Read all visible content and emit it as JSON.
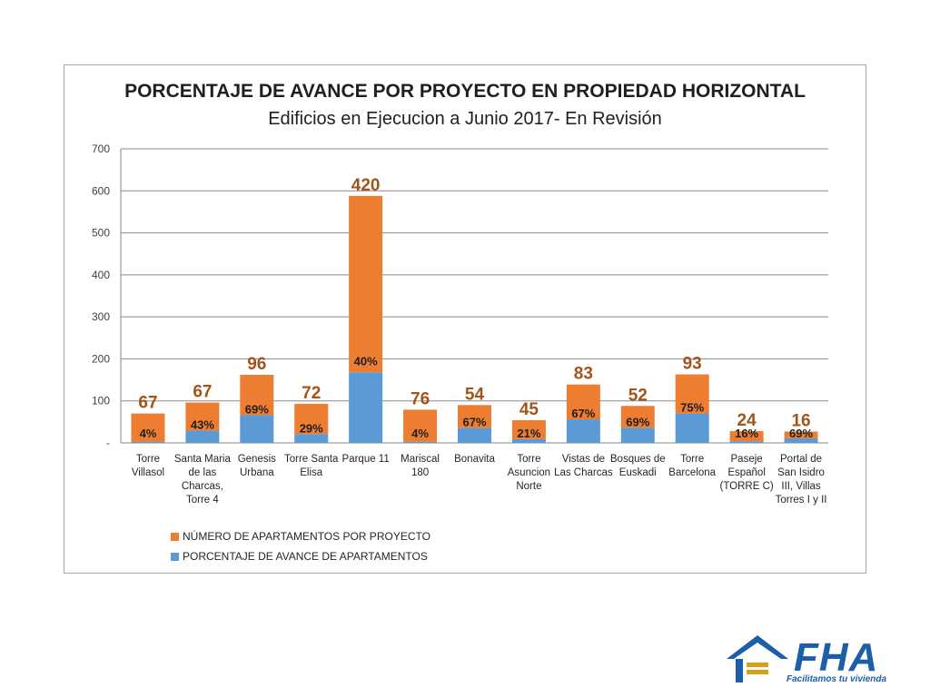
{
  "chart_data": {
    "type": "bar",
    "stacked": true,
    "title": "PORCENTAJE DE AVANCE POR PROYECTO EN PROPIEDAD HORIZONTAL",
    "subtitle": "Edificios en Ejecucion a Junio 2017- En Revisión",
    "xlabel": "",
    "ylabel": "",
    "ylim": [
      0,
      700
    ],
    "yticks": [
      0,
      100,
      200,
      300,
      400,
      500,
      600,
      700
    ],
    "ytick_labels": [
      "-",
      "100",
      "200",
      "300",
      "400",
      "500",
      "600",
      "700"
    ],
    "grid": true,
    "legend_position": "bottom",
    "categories": [
      [
        "Torre",
        "Villasol"
      ],
      [
        "Santa Maria",
        "de las",
        "Charcas,",
        "Torre 4"
      ],
      [
        "Genesis",
        "Urbana"
      ],
      [
        "Torre Santa",
        "Elisa"
      ],
      [
        "Parque 11"
      ],
      [
        "Mariscal",
        "180"
      ],
      [
        "Bonavita"
      ],
      [
        "Torre",
        "Asuncion",
        "Norte"
      ],
      [
        "Vistas de",
        "Las Charcas"
      ],
      [
        "Bosques de",
        "Euskadi"
      ],
      [
        "Torre",
        "Barcelona"
      ],
      [
        "Paseje",
        "Español",
        "(TORRE C)"
      ],
      [
        "Portal de",
        "San Isidro",
        "III, Villas",
        "Torres I y II"
      ]
    ],
    "series": [
      {
        "name": "PORCENTAJE DE AVANCE DE APARTAMENTOS",
        "color": "#5b9bd5",
        "values": [
          3,
          29,
          66,
          21,
          168,
          3,
          36,
          9,
          56,
          36,
          70,
          4,
          11
        ],
        "labels": [
          "4%",
          "43%",
          "69%",
          "29%",
          "40%",
          "4%",
          "67%",
          "21%",
          "67%",
          "69%",
          "75%",
          "16%",
          "69%"
        ]
      },
      {
        "name": "NÚMERO DE APARTAMENTOS POR PROYECTO",
        "color": "#ed7d31",
        "values": [
          67,
          67,
          96,
          72,
          420,
          76,
          54,
          45,
          83,
          52,
          93,
          24,
          16
        ],
        "labels": [
          "67",
          "67",
          "96",
          "72",
          "420",
          "76",
          "54",
          "45",
          "83",
          "52",
          "93",
          "24",
          "16"
        ]
      }
    ]
  },
  "legend": {
    "items": [
      {
        "label": "NÚMERO DE APARTAMENTOS POR PROYECTO",
        "color": "#ed7d31"
      },
      {
        "label": "PORCENTAJE DE AVANCE DE APARTAMENTOS",
        "color": "#5b9bd5"
      }
    ]
  },
  "logo": {
    "text": "FHA",
    "tagline": "Facilitamos tu vivienda",
    "color": "#1b5fa8",
    "accent_color": "#d4a017"
  }
}
